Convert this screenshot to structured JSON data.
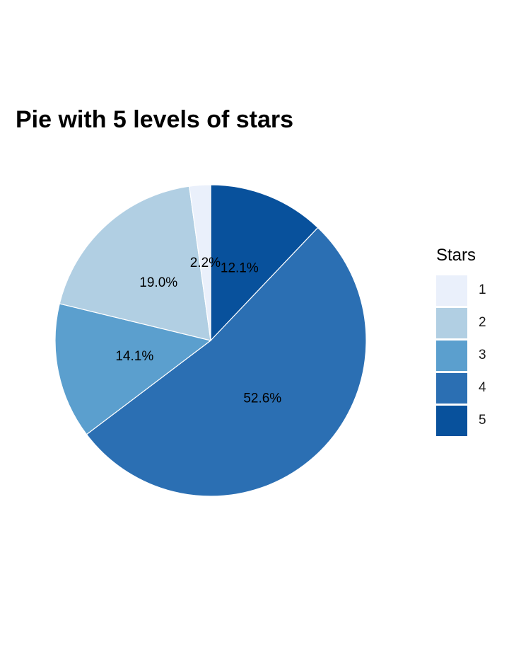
{
  "chart_data": {
    "type": "pie",
    "title": "Pie with 5 levels of stars",
    "legend_title": "Stars",
    "legend_position": "right",
    "start_angle_deg": 0,
    "direction": "clockwise",
    "slices": [
      {
        "category": "5",
        "value": 12.1,
        "label": "12.1%",
        "color": "#08519C"
      },
      {
        "category": "4",
        "value": 52.6,
        "label": "52.6%",
        "color": "#2B6FB3"
      },
      {
        "category": "3",
        "value": 14.1,
        "label": "14.1%",
        "color": "#5B9FCE"
      },
      {
        "category": "2",
        "value": 19.0,
        "label": "19.0%",
        "color": "#B1CFE3"
      },
      {
        "category": "1",
        "value": 2.2,
        "label": "2.2%",
        "color": "#EAF0FB"
      }
    ],
    "legend": [
      {
        "label": "1",
        "color": "#EAF0FB"
      },
      {
        "label": "2",
        "color": "#B1CFE3"
      },
      {
        "label": "3",
        "color": "#5B9FCE"
      },
      {
        "label": "4",
        "color": "#2B6FB3"
      },
      {
        "label": "5",
        "color": "#08519C"
      }
    ]
  }
}
